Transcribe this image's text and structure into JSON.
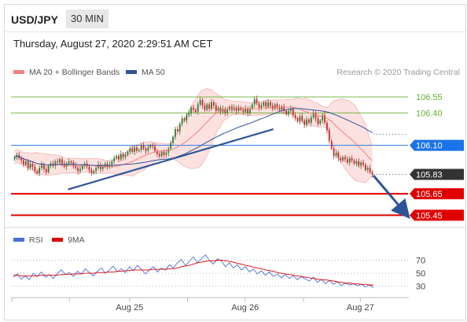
{
  "header": {
    "symbol": "USD/JPY",
    "timeframe": "30 MIN",
    "datetime": "Thursday, August 27, 2020 2:29:51 AM CET"
  },
  "legend": {
    "ma20_label": "MA 20 + Bollinger Bands",
    "ma50_label": "MA 50",
    "credit": "Research © 2020 Trading Central",
    "rsi_label": "RSI",
    "ma9_label": "9MA"
  },
  "colors": {
    "ma20": "#f08080",
    "band_fill": "#fbdcdc",
    "ma50": "#2f5597",
    "trendline": "#2f5597",
    "candle_up": "#2e7d32",
    "candle_down": "#c62828",
    "resistance": "#66b032",
    "current_level": "#1a73e8",
    "support": "#e00000",
    "last_price_bg": "#333333",
    "rsi": "#4a6fd8",
    "rsi_ma": "#e00000"
  },
  "chart_data": [
    {
      "type": "candlestick",
      "title": "USD/JPY 30 MIN",
      "x_tick_labels": [
        "Aug 25",
        "Aug 26",
        "Aug 27"
      ],
      "ylim": [
        105.38,
        106.66
      ],
      "series": [
        {
          "name": "USD/JPY",
          "close": [
            105.99,
            106.01,
            105.98,
            105.96,
            105.92,
            105.95,
            105.89,
            105.93,
            105.9,
            105.86,
            105.84,
            105.89,
            105.92,
            105.88,
            105.85,
            105.91,
            105.93,
            105.91,
            105.95,
            105.94,
            105.97,
            105.93,
            105.9,
            105.93,
            105.95,
            105.94,
            105.91,
            105.89,
            105.86,
            105.88,
            105.91,
            105.93,
            105.9,
            105.87,
            105.84,
            105.86,
            105.89,
            105.92,
            105.88,
            105.9,
            105.93,
            105.9,
            105.92,
            105.95,
            105.98,
            106.0,
            105.97,
            106.02,
            105.99,
            106.01,
            106.04,
            106.07,
            106.04,
            106.08,
            106.05,
            106.06,
            106.1,
            106.07,
            106.05,
            106.08,
            106.1,
            106.09,
            106.05,
            106.02,
            106.0,
            106.04,
            106.01,
            106.03,
            106.07,
            106.12,
            106.18,
            106.25,
            106.23,
            106.3,
            106.35,
            106.33,
            106.38,
            106.4,
            106.45,
            106.43,
            106.41,
            106.48,
            106.52,
            106.47,
            106.43,
            106.48,
            106.44,
            106.5,
            106.47,
            106.42,
            106.45,
            106.41,
            106.44,
            106.4,
            106.43,
            106.46,
            106.43,
            106.45,
            106.42,
            106.45,
            106.43,
            106.41,
            106.44,
            106.4,
            106.44,
            106.48,
            106.53,
            106.49,
            106.45,
            106.47,
            106.5,
            106.46,
            106.5,
            106.47,
            106.44,
            106.48,
            106.45,
            106.43,
            106.46,
            106.42,
            106.39,
            106.42,
            106.44,
            106.38,
            106.35,
            106.32,
            106.37,
            106.33,
            106.29,
            106.34,
            106.31,
            106.36,
            106.4,
            106.35,
            106.3,
            106.33,
            106.38,
            106.31,
            106.24,
            106.14,
            106.07,
            106.0,
            106.03,
            105.98,
            105.96,
            105.99,
            105.97,
            105.94,
            105.98,
            105.96,
            105.93,
            105.95,
            105.91,
            105.94,
            105.92,
            105.87,
            105.89,
            105.85,
            105.83
          ]
        },
        {
          "name": "MA 20",
          "kind": "line"
        },
        {
          "name": "MA 50",
          "kind": "line"
        }
      ],
      "trendline": {
        "from": [
          0.152,
          105.69
        ],
        "to": [
          0.722,
          106.25
        ]
      },
      "levels": [
        {
          "label": "106.55",
          "value": 106.55,
          "role": "resistance"
        },
        {
          "label": "106.40",
          "value": 106.4,
          "role": "resistance"
        },
        {
          "label": "106.10",
          "value": 106.1,
          "role": "current"
        },
        {
          "label": "105.83",
          "value": 105.83,
          "role": "last"
        },
        {
          "label": "105.65",
          "value": 105.65,
          "role": "support"
        },
        {
          "label": "105.45",
          "value": 105.45,
          "role": "support"
        }
      ],
      "projection": {
        "from_value": 105.82,
        "to_value": 105.44,
        "direction": "down"
      }
    },
    {
      "type": "line",
      "title": "RSI",
      "ylim": [
        20,
        85
      ],
      "y_ticks": [
        "70",
        "50",
        "30"
      ],
      "series": [
        {
          "name": "RSI",
          "values": [
            44,
            49,
            41,
            46,
            40,
            50,
            45,
            52,
            44,
            48,
            42,
            50,
            55,
            48,
            51,
            45,
            53,
            49,
            57,
            51,
            46,
            53,
            58,
            50,
            55,
            61,
            52,
            57,
            51,
            60,
            54,
            62,
            56,
            49,
            55,
            60,
            52,
            58,
            55,
            63,
            58,
            66,
            71,
            62,
            68,
            75,
            66,
            72,
            78,
            70,
            64,
            72,
            69,
            60,
            66,
            58,
            63,
            55,
            60,
            52,
            56,
            49,
            54,
            47,
            52,
            45,
            49,
            43,
            48,
            42,
            46,
            40,
            45,
            41,
            38,
            44,
            36,
            41,
            34,
            39,
            33,
            37,
            31,
            35,
            32,
            34,
            31,
            33,
            29,
            32,
            28
          ]
        },
        {
          "name": "9MA",
          "values": [
            47,
            47,
            46,
            46,
            46,
            46,
            46,
            47,
            47,
            47,
            47,
            47,
            48,
            48,
            48,
            49,
            49,
            49,
            50,
            50,
            50,
            51,
            51,
            51,
            52,
            52,
            53,
            53,
            54,
            54,
            55,
            55,
            55,
            55,
            55,
            56,
            56,
            56,
            56,
            57,
            57,
            58,
            60,
            61,
            62,
            64,
            66,
            67,
            68,
            69,
            69,
            70,
            70,
            69,
            68,
            67,
            65,
            64,
            62,
            61,
            59,
            58,
            57,
            55,
            54,
            53,
            51,
            50,
            49,
            48,
            47,
            46,
            45,
            44,
            43,
            42,
            41,
            40,
            40,
            39,
            38,
            37,
            36,
            35,
            35,
            34,
            34,
            33,
            33,
            32,
            32
          ]
        }
      ]
    }
  ]
}
